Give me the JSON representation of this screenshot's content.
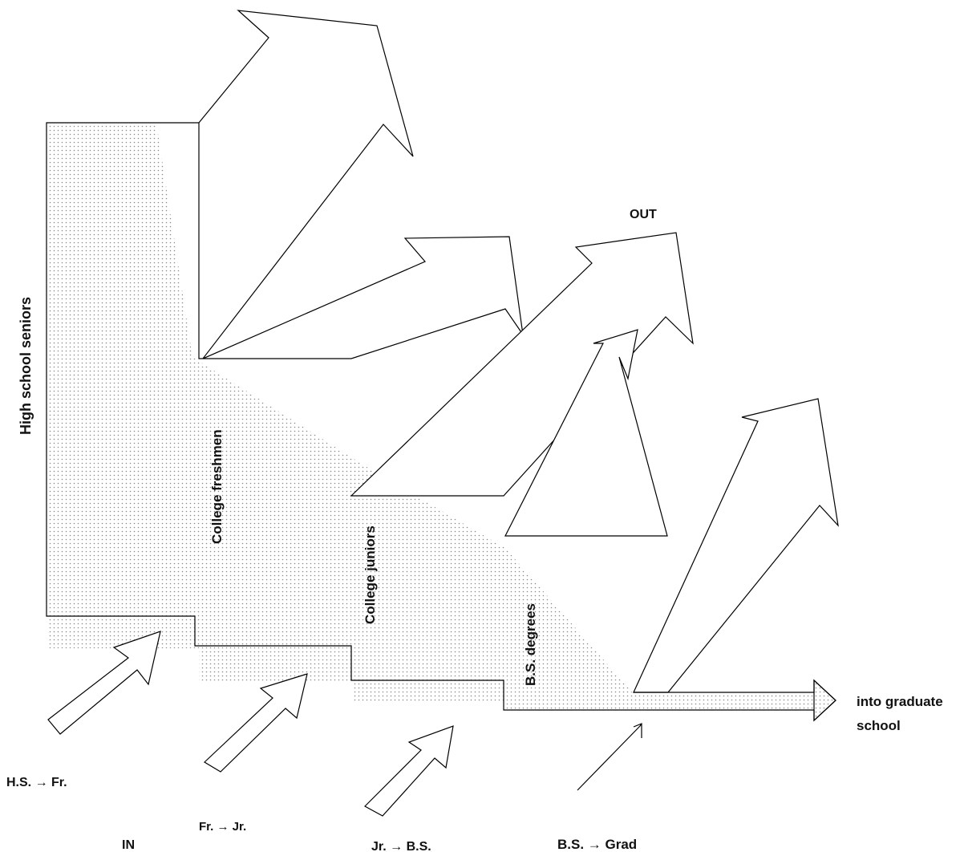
{
  "labels": {
    "out": "OUT",
    "in": "IN",
    "high_school_seniors": "High school seniors",
    "college_freshmen": "College freshmen",
    "college_juniors": "College juniors",
    "bs_degrees": "B.S. degrees",
    "into_graduate_school_line1": "into graduate",
    "into_graduate_school_line2": "school",
    "hs_to_fr": "H.S. → Fr.",
    "fr_to_jr": "Fr. → Jr.",
    "jr_to_bs": "Jr. → B.S.",
    "bs_to_grad": "B.S. → Grad"
  },
  "colors": {
    "stroke": "#000000",
    "shade_dot": "#8a8a8a",
    "background": "#ffffff"
  }
}
